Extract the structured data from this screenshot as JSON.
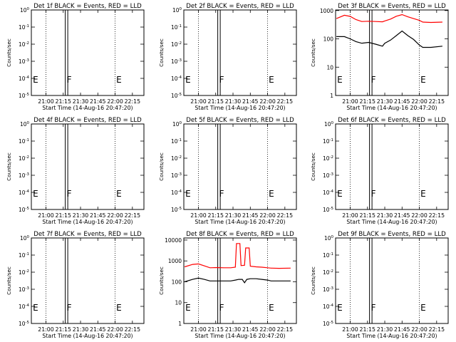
{
  "colors": {
    "events": "#000000",
    "lld": "#ff0000",
    "axes": "#000000"
  },
  "chart_data": [
    {
      "type": "line",
      "detector": "1f",
      "title": "Det 1f BLACK = Events, RED = LLD",
      "xlabel": "Start Time (14-Aug-16 20:47:20)",
      "ylabel": "Counts/sec",
      "xticks": [
        "21:00",
        "21:15",
        "21:30",
        "21:45",
        "22:00",
        "22:15"
      ],
      "yscale": "log",
      "ytick_labels": [
        {
          "mant": "10",
          "exp": "0"
        },
        {
          "mant": "10",
          "exp": "-1"
        },
        {
          "mant": "10",
          "exp": "-2"
        },
        {
          "mant": "10",
          "exp": "-3"
        },
        {
          "mant": "10",
          "exp": "-4"
        },
        {
          "mant": "10",
          "exp": "-5"
        }
      ],
      "markers": [
        {
          "label": "E",
          "x": "20:48"
        },
        {
          "label": "F",
          "x": "21:18"
        },
        {
          "label": "E",
          "x": "22:01"
        }
      ],
      "series": []
    },
    {
      "type": "line",
      "detector": "2f",
      "title": "Det 2f BLACK = Events, RED = LLD",
      "xlabel": "Start Time (14-Aug-16 20:47:20)",
      "ylabel": "Counts/sec",
      "xticks": [
        "21:00",
        "21:15",
        "21:30",
        "21:45",
        "22:00",
        "22:15"
      ],
      "yscale": "log",
      "ytick_labels": [
        {
          "mant": "10",
          "exp": "0"
        },
        {
          "mant": "10",
          "exp": "-1"
        },
        {
          "mant": "10",
          "exp": "-2"
        },
        {
          "mant": "10",
          "exp": "-3"
        },
        {
          "mant": "10",
          "exp": "-4"
        },
        {
          "mant": "10",
          "exp": "-5"
        }
      ],
      "markers": [
        {
          "label": "E",
          "x": "20:48"
        },
        {
          "label": "F",
          "x": "21:18"
        },
        {
          "label": "E",
          "x": "22:01"
        }
      ],
      "series": []
    },
    {
      "type": "line",
      "detector": "3f",
      "title": "Det 3f BLACK = Events, RED = LLD",
      "xlabel": "Start Time (14-Aug-16 20:47:20)",
      "ylabel": "Counts/sec",
      "xticks": [
        "21:00",
        "21:15",
        "21:30",
        "21:45",
        "22:00",
        "22:15"
      ],
      "yscale": "log",
      "ytick_labels": [
        {
          "mant": "1",
          "exp": ""
        },
        {
          "mant": "10",
          "exp": ""
        },
        {
          "mant": "100",
          "exp": ""
        },
        {
          "mant": "1000",
          "exp": ""
        }
      ],
      "markers": [
        {
          "label": "E",
          "x": "20:48"
        },
        {
          "label": "F",
          "x": "21:18"
        },
        {
          "label": "E",
          "x": "22:01"
        }
      ],
      "series": [
        {
          "role": "events",
          "color": "#000000",
          "x": [
            "20:48",
            "20:55",
            "21:00",
            "21:05",
            "21:10",
            "21:16",
            "21:22",
            "21:28",
            "21:30",
            "21:35",
            "21:40",
            "21:45",
            "21:50",
            "21:55",
            "22:00",
            "22:03",
            "22:10",
            "22:20"
          ],
          "y": [
            120,
            120,
            100,
            80,
            70,
            75,
            65,
            55,
            70,
            90,
            130,
            190,
            130,
            95,
            60,
            50,
            50,
            55
          ]
        },
        {
          "role": "lld",
          "color": "#ff0000",
          "x": [
            "20:48",
            "20:55",
            "21:00",
            "21:05",
            "21:10",
            "21:16",
            "21:22",
            "21:28",
            "21:30",
            "21:35",
            "21:40",
            "21:45",
            "21:50",
            "21:55",
            "22:00",
            "22:03",
            "22:10",
            "22:20"
          ],
          "y": [
            520,
            680,
            620,
            480,
            410,
            420,
            410,
            400,
            430,
            500,
            630,
            720,
            600,
            520,
            450,
            390,
            380,
            390
          ]
        }
      ]
    },
    {
      "type": "line",
      "detector": "4f",
      "title": "Det 4f BLACK = Events, RED = LLD",
      "xlabel": "Start Time (14-Aug-16 20:47:20)",
      "ylabel": "Counts/sec",
      "xticks": [
        "21:00",
        "21:15",
        "21:30",
        "21:45",
        "22:00",
        "22:15"
      ],
      "yscale": "log",
      "ytick_labels": [
        {
          "mant": "10",
          "exp": "0"
        },
        {
          "mant": "10",
          "exp": "-1"
        },
        {
          "mant": "10",
          "exp": "-2"
        },
        {
          "mant": "10",
          "exp": "-3"
        },
        {
          "mant": "10",
          "exp": "-4"
        },
        {
          "mant": "10",
          "exp": "-5"
        }
      ],
      "markers": [
        {
          "label": "E",
          "x": "20:48"
        },
        {
          "label": "F",
          "x": "21:18"
        },
        {
          "label": "E",
          "x": "22:01"
        }
      ],
      "series": []
    },
    {
      "type": "line",
      "detector": "5f",
      "title": "Det 5f BLACK = Events, RED = LLD",
      "xlabel": "Start Time (14-Aug-16 20:47:20)",
      "ylabel": "Counts/sec",
      "xticks": [
        "21:00",
        "21:15",
        "21:30",
        "21:45",
        "22:00",
        "22:15"
      ],
      "yscale": "log",
      "ytick_labels": [
        {
          "mant": "10",
          "exp": "0"
        },
        {
          "mant": "10",
          "exp": "-1"
        },
        {
          "mant": "10",
          "exp": "-2"
        },
        {
          "mant": "10",
          "exp": "-3"
        },
        {
          "mant": "10",
          "exp": "-4"
        },
        {
          "mant": "10",
          "exp": "-5"
        }
      ],
      "markers": [
        {
          "label": "E",
          "x": "20:48"
        },
        {
          "label": "F",
          "x": "21:18"
        },
        {
          "label": "E",
          "x": "22:01"
        }
      ],
      "series": []
    },
    {
      "type": "line",
      "detector": "6f",
      "title": "Det 6f BLACK = Events, RED = LLD",
      "xlabel": "Start Time (14-Aug-16 20:47:20)",
      "ylabel": "Counts/sec",
      "xticks": [
        "21:00",
        "21:15",
        "21:30",
        "21:45",
        "22:00",
        "22:15"
      ],
      "yscale": "log",
      "ytick_labels": [
        {
          "mant": "10",
          "exp": "0"
        },
        {
          "mant": "10",
          "exp": "-1"
        },
        {
          "mant": "10",
          "exp": "-2"
        },
        {
          "mant": "10",
          "exp": "-3"
        },
        {
          "mant": "10",
          "exp": "-4"
        },
        {
          "mant": "10",
          "exp": "-5"
        }
      ],
      "markers": [
        {
          "label": "E",
          "x": "20:48"
        },
        {
          "label": "F",
          "x": "21:18"
        },
        {
          "label": "E",
          "x": "22:01"
        }
      ],
      "series": []
    },
    {
      "type": "line",
      "detector": "7f",
      "title": "Det 7f BLACK = Events, RED = LLD",
      "xlabel": "Start Time (14-Aug-16 20:47:20)",
      "ylabel": "Counts/sec",
      "xticks": [
        "21:00",
        "21:15",
        "21:30",
        "21:45",
        "22:00",
        "22:15"
      ],
      "yscale": "log",
      "ytick_labels": [
        {
          "mant": "10",
          "exp": "0"
        },
        {
          "mant": "10",
          "exp": "-1"
        },
        {
          "mant": "10",
          "exp": "-2"
        },
        {
          "mant": "10",
          "exp": "-3"
        },
        {
          "mant": "10",
          "exp": "-4"
        },
        {
          "mant": "10",
          "exp": "-5"
        }
      ],
      "markers": [
        {
          "label": "E",
          "x": "20:48"
        },
        {
          "label": "F",
          "x": "21:18"
        },
        {
          "label": "E",
          "x": "22:01"
        }
      ],
      "series": []
    },
    {
      "type": "line",
      "detector": "8f",
      "title": "Det 8f BLACK = Events, RED = LLD",
      "xlabel": "Start Time (14-Aug-16 20:47:20)",
      "ylabel": "Counts/sec",
      "xticks": [
        "21:00",
        "21:15",
        "21:30",
        "21:45",
        "22:00",
        "22:15"
      ],
      "yscale": "log",
      "ytick_labels": [
        {
          "mant": "1",
          "exp": ""
        },
        {
          "mant": "10",
          "exp": ""
        },
        {
          "mant": "100",
          "exp": ""
        },
        {
          "mant": "1000",
          "exp": ""
        },
        {
          "mant": "10000",
          "exp": ""
        }
      ],
      "markers": [
        {
          "label": "E",
          "x": "20:48"
        },
        {
          "label": "F",
          "x": "21:18"
        },
        {
          "label": "E",
          "x": "22:01"
        }
      ],
      "series": [
        {
          "role": "events",
          "color": "#000000",
          "x": [
            "20:48",
            "20:55",
            "21:00",
            "21:05",
            "21:10",
            "21:16",
            "21:22",
            "21:28",
            "21:32",
            "21:35",
            "21:38",
            "21:40",
            "21:42",
            "21:45",
            "21:50",
            "21:55",
            "22:00",
            "22:03",
            "22:10",
            "22:20"
          ],
          "y": [
            100,
            130,
            150,
            130,
            110,
            110,
            110,
            110,
            120,
            130,
            130,
            90,
            130,
            140,
            140,
            130,
            120,
            110,
            110,
            110
          ]
        },
        {
          "role": "lld",
          "color": "#ff0000",
          "x": [
            "20:48",
            "20:55",
            "21:00",
            "21:05",
            "21:10",
            "21:16",
            "21:22",
            "21:28",
            "21:32",
            "21:33",
            "21:36",
            "21:37",
            "21:40",
            "21:41",
            "21:44",
            "21:45",
            "21:50",
            "21:55",
            "22:00",
            "22:03",
            "22:10",
            "22:20"
          ],
          "y": [
            520,
            680,
            720,
            580,
            470,
            480,
            470,
            470,
            500,
            6800,
            6800,
            600,
            620,
            4200,
            4200,
            560,
            520,
            500,
            470,
            450,
            440,
            450
          ]
        }
      ]
    },
    {
      "type": "line",
      "detector": "9f",
      "title": "Det 9f BLACK = Events, RED = LLD",
      "xlabel": "Start Time (14-Aug-16 20:47:20)",
      "ylabel": "Counts/sec",
      "xticks": [
        "21:00",
        "21:15",
        "21:30",
        "21:45",
        "22:00",
        "22:15"
      ],
      "yscale": "log",
      "ytick_labels": [
        {
          "mant": "10",
          "exp": "0"
        },
        {
          "mant": "10",
          "exp": "-1"
        },
        {
          "mant": "10",
          "exp": "-2"
        },
        {
          "mant": "10",
          "exp": "-3"
        },
        {
          "mant": "10",
          "exp": "-4"
        },
        {
          "mant": "10",
          "exp": "-5"
        }
      ],
      "markers": [
        {
          "label": "E",
          "x": "20:48"
        },
        {
          "label": "F",
          "x": "21:18"
        },
        {
          "label": "E",
          "x": "22:01"
        }
      ],
      "series": []
    }
  ]
}
